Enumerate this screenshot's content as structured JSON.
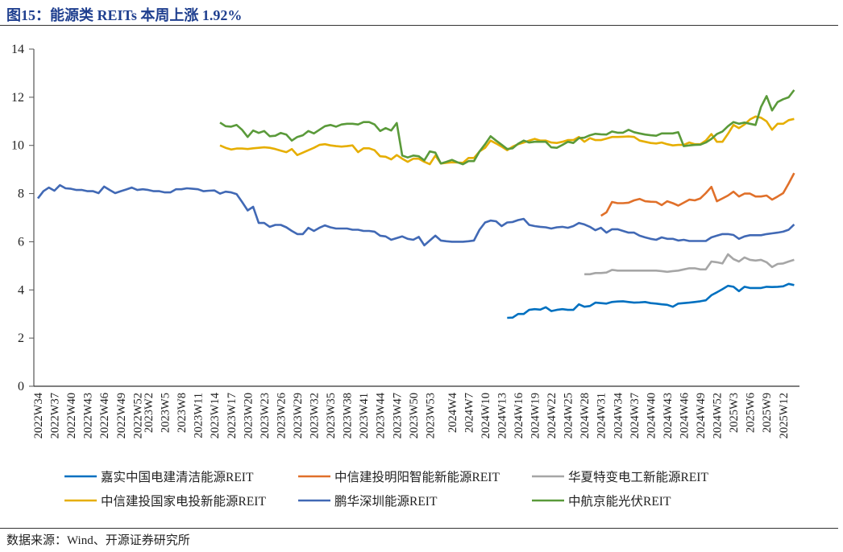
{
  "title": "图15：能源类 REITs 本周上涨 1.92%",
  "source": "数据来源：Wind、开源证券研究所",
  "chart_data": {
    "type": "line",
    "title": "",
    "xlabel": "",
    "ylabel": "",
    "ylim": [
      0,
      14
    ],
    "yticks": [
      "0",
      "2",
      "4",
      "6",
      "8",
      "10",
      "12",
      "14"
    ],
    "grid": false,
    "legend": "bottom",
    "x_first": "2022W34",
    "x_last": "2025W14",
    "xticks": [
      "2022W34",
      "2022W37",
      "2022W40",
      "2022W43",
      "2022W46",
      "2022W49",
      "2022W52",
      "2023W2",
      "2023W5",
      "2023W8",
      "2023W11",
      "2023W14",
      "2023W17",
      "2023W20",
      "2023W23",
      "2023W26",
      "2023W29",
      "2023W32",
      "2023W35",
      "2023W38",
      "2023W41",
      "2023W44",
      "2023W47",
      "2023W50",
      "2023W53",
      "2024W4",
      "2024W7",
      "2024W10",
      "2024W13",
      "2024W16",
      "2024W19",
      "2024W22",
      "2024W25",
      "2024W28",
      "2024W31",
      "2024W34",
      "2024W37",
      "2024W40",
      "2024W43",
      "2024W46",
      "2024W49",
      "2024W52",
      "2025W3",
      "2025W6",
      "2025W9",
      "2025W12"
    ],
    "series": [
      {
        "name": "嘉实中国电建清洁能源REIT",
        "color": "#0070C0",
        "start": "2024W14",
        "values": [
          2.84,
          2.85,
          3.0,
          3.0,
          3.17,
          3.2,
          3.18,
          3.28,
          3.12,
          3.17,
          3.2,
          3.17,
          3.17,
          3.4,
          3.3,
          3.33,
          3.47,
          3.45,
          3.43,
          3.5,
          3.52,
          3.53,
          3.5,
          3.47,
          3.48,
          3.5,
          3.45,
          3.43,
          3.4,
          3.38,
          3.3,
          3.43,
          3.45,
          3.47,
          3.5,
          3.53,
          3.57,
          3.78,
          3.9,
          4.03,
          4.17,
          4.13,
          3.95,
          4.13,
          4.08,
          4.08,
          4.08,
          4.13,
          4.12,
          4.13,
          4.15,
          4.25,
          4.2
        ]
      },
      {
        "name": "中信建投明阳智能新能源REIT",
        "color": "#E0702A",
        "start": "2024W31",
        "values": [
          7.08,
          7.22,
          7.65,
          7.6,
          7.6,
          7.62,
          7.72,
          7.78,
          7.68,
          7.66,
          7.65,
          7.52,
          7.68,
          7.6,
          7.5,
          7.62,
          7.75,
          7.72,
          7.8,
          8.02,
          8.28,
          7.68,
          7.8,
          7.92,
          8.08,
          7.88,
          8.0,
          8.0,
          7.88,
          7.88,
          7.92,
          7.75,
          7.88,
          8.02,
          8.42,
          8.85
        ]
      },
      {
        "name": "华夏特变电工新能源REIT",
        "color": "#A6A6A6",
        "start": "2024W28",
        "values": [
          4.65,
          4.65,
          4.7,
          4.7,
          4.72,
          4.83,
          4.8,
          4.8,
          4.8,
          4.8,
          4.8,
          4.8,
          4.8,
          4.8,
          4.78,
          4.75,
          4.78,
          4.8,
          4.85,
          4.9,
          4.9,
          4.85,
          4.85,
          5.18,
          5.15,
          5.1,
          5.48,
          5.28,
          5.18,
          5.35,
          5.25,
          5.22,
          5.25,
          5.15,
          4.95,
          5.08,
          5.1,
          5.18,
          5.25
        ]
      },
      {
        "name": "中信建投国家电投新能源REIT",
        "color": "#E6AE00",
        "start": "2023W15",
        "values": [
          10.0,
          9.9,
          9.83,
          9.87,
          9.87,
          9.85,
          9.88,
          9.9,
          9.92,
          9.9,
          9.85,
          9.78,
          9.72,
          9.85,
          9.6,
          9.7,
          9.8,
          9.9,
          10.02,
          10.05,
          10.0,
          9.97,
          9.95,
          9.97,
          10.0,
          9.72,
          9.88,
          9.88,
          9.8,
          9.55,
          9.53,
          9.42,
          9.6,
          9.45,
          9.32,
          9.45,
          9.45,
          9.32,
          9.22,
          9.58,
          9.25,
          9.28,
          9.3,
          9.29,
          9.28,
          9.48,
          9.48,
          9.75,
          9.9,
          10.2,
          10.08,
          9.95,
          9.8,
          9.95,
          10.05,
          10.12,
          10.2,
          10.27,
          10.2,
          10.2,
          10.12,
          10.1,
          10.15,
          10.22,
          10.22,
          10.35,
          10.15,
          10.3,
          10.22,
          10.22,
          10.28,
          10.35,
          10.35,
          10.36,
          10.37,
          10.35,
          10.2,
          10.15,
          10.1,
          10.08,
          10.12,
          10.05,
          10.0,
          10.02,
          10.02,
          10.12,
          10.05,
          10.05,
          10.2,
          10.47,
          10.15,
          10.15,
          10.48,
          10.85,
          10.72,
          10.87,
          11.08,
          11.2,
          11.15,
          11.0,
          10.65,
          10.9,
          10.9,
          11.05,
          11.1
        ]
      },
      {
        "name": "鹏华深圳能源REIT",
        "color": "#4169B5",
        "start": "2022W34",
        "values": [
          7.8,
          8.1,
          8.25,
          8.12,
          8.35,
          8.22,
          8.2,
          8.15,
          8.15,
          8.1,
          8.1,
          8.02,
          8.29,
          8.15,
          8.02,
          8.1,
          8.17,
          8.25,
          8.15,
          8.18,
          8.15,
          8.1,
          8.1,
          8.05,
          8.05,
          8.18,
          8.18,
          8.22,
          8.2,
          8.18,
          8.1,
          8.12,
          8.13,
          8.0,
          8.08,
          8.05,
          7.98,
          7.65,
          7.3,
          7.45,
          6.78,
          6.78,
          6.62,
          6.7,
          6.7,
          6.6,
          6.45,
          6.32,
          6.32,
          6.58,
          6.45,
          6.58,
          6.68,
          6.6,
          6.55,
          6.55,
          6.55,
          6.5,
          6.5,
          6.45,
          6.45,
          6.42,
          6.25,
          6.22,
          6.08,
          6.15,
          6.22,
          6.12,
          6.08,
          6.2,
          5.85,
          6.05,
          6.25,
          6.05,
          6.02,
          6.0,
          6.0,
          6.0,
          6.02,
          6.05,
          6.5,
          6.8,
          6.88,
          6.85,
          6.65,
          6.8,
          6.82,
          6.9,
          6.95,
          6.7,
          6.65,
          6.62,
          6.6,
          6.55,
          6.6,
          6.62,
          6.58,
          6.65,
          6.78,
          6.72,
          6.62,
          6.48,
          6.58,
          6.38,
          6.52,
          6.52,
          6.45,
          6.38,
          6.38,
          6.25,
          6.18,
          6.12,
          6.08,
          6.18,
          6.12,
          6.12,
          6.05,
          6.08,
          6.03,
          6.03,
          6.03,
          6.03,
          6.18,
          6.25,
          6.32,
          6.32,
          6.28,
          6.12,
          6.22,
          6.27,
          6.27,
          6.27,
          6.32,
          6.35,
          6.38,
          6.42,
          6.5,
          6.72
        ]
      },
      {
        "name": "中航京能光伏REIT",
        "color": "#5A9A3A",
        "start": "2023W15",
        "values": [
          10.95,
          10.8,
          10.78,
          10.85,
          10.65,
          10.35,
          10.62,
          10.52,
          10.6,
          10.38,
          10.4,
          10.52,
          10.45,
          10.2,
          10.35,
          10.42,
          10.6,
          10.5,
          10.65,
          10.8,
          10.85,
          10.78,
          10.87,
          10.9,
          10.9,
          10.87,
          10.97,
          10.97,
          10.87,
          10.6,
          10.72,
          10.62,
          10.93,
          9.58,
          9.5,
          9.58,
          9.55,
          9.38,
          9.75,
          9.7,
          9.25,
          9.32,
          9.4,
          9.3,
          9.22,
          9.35,
          9.35,
          9.75,
          10.05,
          10.38,
          10.2,
          10.03,
          9.85,
          9.88,
          10.07,
          10.2,
          10.12,
          10.15,
          10.15,
          10.15,
          9.92,
          9.9,
          10.02,
          10.15,
          10.1,
          10.3,
          10.32,
          10.42,
          10.48,
          10.46,
          10.45,
          10.58,
          10.53,
          10.53,
          10.65,
          10.55,
          10.5,
          10.45,
          10.42,
          10.4,
          10.5,
          10.5,
          10.5,
          10.55,
          9.97,
          10.0,
          10.02,
          10.03,
          10.12,
          10.27,
          10.47,
          10.58,
          10.8,
          10.97,
          10.9,
          10.95,
          10.9,
          10.85,
          11.6,
          12.05,
          11.45,
          11.8,
          11.92,
          12.0,
          12.3
        ]
      }
    ]
  }
}
